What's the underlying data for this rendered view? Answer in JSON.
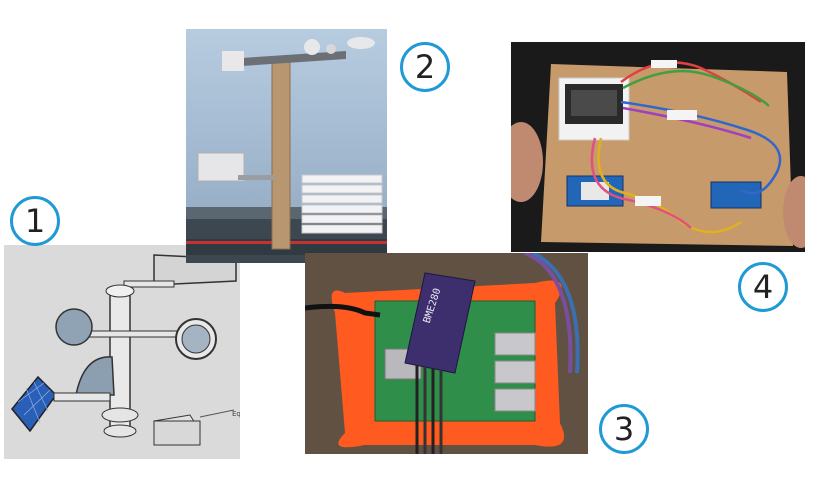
{
  "badges": [
    {
      "label": "1",
      "color": "#1f9ad6"
    },
    {
      "label": "2",
      "color": "#1f9ad6"
    },
    {
      "label": "3",
      "color": "#1f9ad6"
    },
    {
      "label": "4",
      "color": "#1f9ad6"
    }
  ],
  "sketch_label": "Eq",
  "sensor_board_text": "BME280",
  "colors": {
    "badge_ring": "#1f9ad6",
    "orange_case": "#ff5a1f",
    "sky": "#a9bfd6",
    "board_wood": "#c79a6b"
  }
}
